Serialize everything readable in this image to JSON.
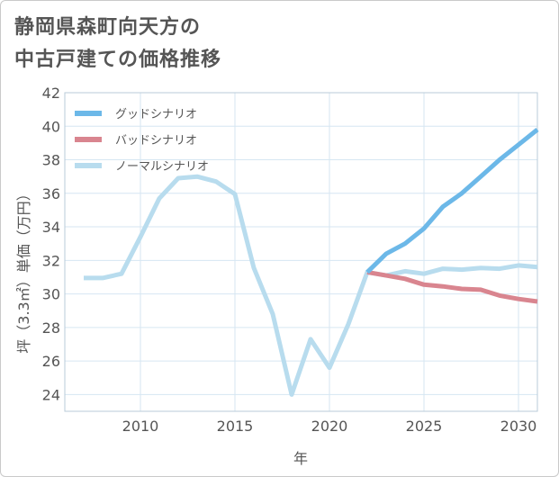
{
  "chart_data": {
    "type": "line",
    "title_lines": [
      "静岡県森町向天方の",
      "中古戸建ての価格推移"
    ],
    "xlabel": "年",
    "ylabel": "坪（3.3㎡）単価（万円）",
    "xlim": [
      2006,
      2031
    ],
    "ylim": [
      23,
      42
    ],
    "x_ticks": [
      2010,
      2015,
      2020,
      2025,
      2030
    ],
    "y_ticks": [
      24,
      26,
      28,
      30,
      32,
      34,
      36,
      38,
      40,
      42
    ],
    "legend": [
      {
        "name": "グッドシナリオ",
        "color": "#6cb8e8"
      },
      {
        "name": "バッドシナリオ",
        "color": "#d9858f"
      },
      {
        "name": "ノーマルシナリオ",
        "color": "#b8dcee"
      }
    ],
    "series": [
      {
        "name": "グッドシナリオ",
        "color": "#6cb8e8",
        "x": [
          2022,
          2023,
          2024,
          2025,
          2026,
          2027,
          2028,
          2029,
          2030,
          2031
        ],
        "values": [
          31.3,
          32.4,
          33.0,
          33.9,
          35.2,
          36.0,
          37.0,
          38.0,
          38.9,
          39.8
        ]
      },
      {
        "name": "バッドシナリオ",
        "color": "#d9858f",
        "x": [
          2022,
          2023,
          2024,
          2025,
          2026,
          2027,
          2028,
          2029,
          2030,
          2031
        ],
        "values": [
          31.3,
          31.1,
          30.9,
          30.55,
          30.45,
          30.3,
          30.25,
          29.9,
          29.7,
          29.55
        ]
      },
      {
        "name": "ノーマルシナリオ",
        "color": "#b8dcee",
        "x": [
          2007,
          2008,
          2009,
          2010,
          2011,
          2012,
          2013,
          2014,
          2015,
          2016,
          2017,
          2018,
          2019,
          2020,
          2021,
          2022,
          2023,
          2024,
          2025,
          2026,
          2027,
          2028,
          2029,
          2030,
          2031
        ],
        "values": [
          30.95,
          30.95,
          31.2,
          33.4,
          35.7,
          36.9,
          37.0,
          36.7,
          35.95,
          31.55,
          28.8,
          24.0,
          27.3,
          25.6,
          28.2,
          31.3,
          31.1,
          31.35,
          31.2,
          31.5,
          31.45,
          31.55,
          31.5,
          31.7,
          31.6
        ]
      }
    ]
  }
}
